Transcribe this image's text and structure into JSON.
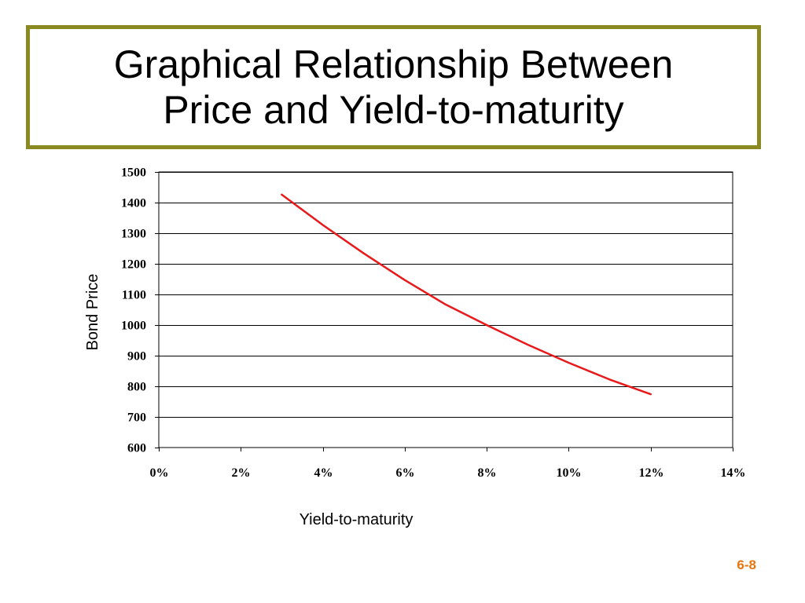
{
  "slide": {
    "title_line1": "Graphical Relationship Between",
    "title_line2": "Price and Yield-to-maturity",
    "slide_number": "6-8",
    "slide_number_color": "#e8740c",
    "title_border_color": "#8b8a22"
  },
  "chart_data": {
    "type": "line",
    "title": "",
    "xlabel": "Yield-to-maturity",
    "ylabel": "Bond Price",
    "xlim": [
      0,
      0.14
    ],
    "ylim": [
      600,
      1500
    ],
    "x_ticks": [
      "0%",
      "2%",
      "4%",
      "6%",
      "8%",
      "10%",
      "12%",
      "14%"
    ],
    "y_ticks": [
      "600",
      "700",
      "800",
      "900",
      "1000",
      "1100",
      "1200",
      "1300",
      "1400",
      "1500"
    ],
    "grid": "horizontal",
    "legend": "none",
    "series": [
      {
        "color": "#e8191b",
        "x": [
          0.03,
          0.04,
          0.05,
          0.06,
          0.07,
          0.08,
          0.09,
          0.1,
          0.11,
          0.12
        ],
        "y": [
          1426,
          1327,
          1234,
          1147,
          1067,
          1000,
          936,
          877,
          822,
          774
        ]
      }
    ]
  }
}
